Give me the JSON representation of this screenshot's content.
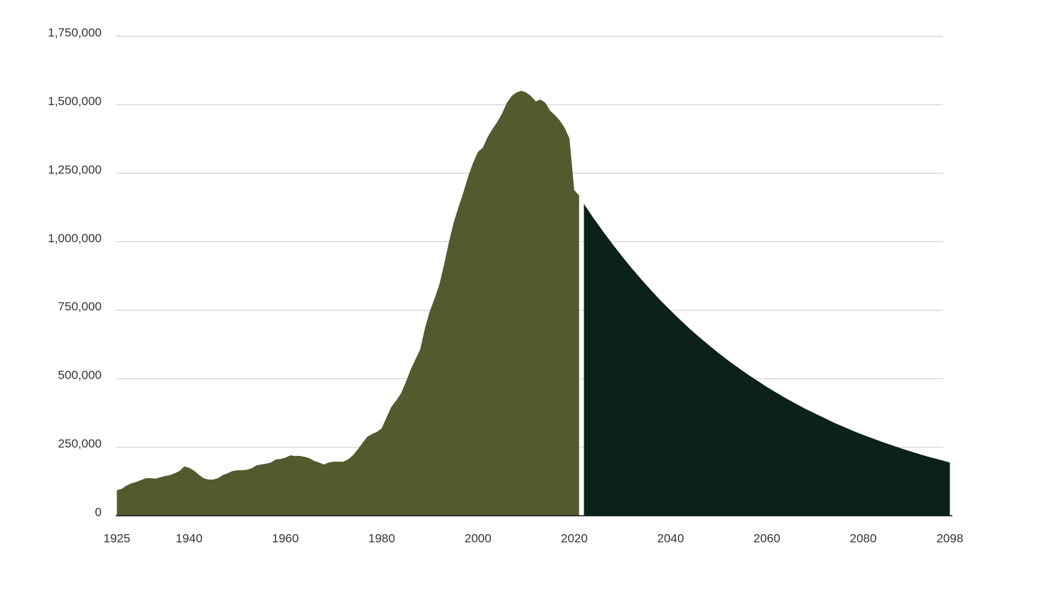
{
  "chart_data": {
    "type": "area",
    "xlim": [
      1925,
      2098
    ],
    "xticks": [
      1925,
      1940,
      1960,
      1980,
      2000,
      2020,
      2040,
      2060,
      2080,
      2098
    ],
    "ylim": [
      0,
      1750000
    ],
    "yticks": [
      0,
      {
        "value": 250000,
        "label": "250,000"
      },
      {
        "value": 500000,
        "label": "500,000"
      },
      {
        "value": 750000,
        "label": "750,000"
      },
      {
        "value": 1000000,
        "label": "1,000,000"
      },
      {
        "value": 1250000,
        "label": "1,250,000"
      },
      {
        "value": 1500000,
        "label": "1,500,000"
      },
      {
        "value": 1750000,
        "label": "1,750,000"
      }
    ],
    "grid": true,
    "series": [
      {
        "color": "#535a2e",
        "x": [
          1925,
          1926,
          1927,
          1928,
          1929,
          1930,
          1931,
          1932,
          1933,
          1934,
          1935,
          1936,
          1937,
          1938,
          1939,
          1940,
          1941,
          1942,
          1943,
          1944,
          1945,
          1946,
          1947,
          1948,
          1949,
          1950,
          1951,
          1952,
          1953,
          1954,
          1955,
          1956,
          1957,
          1958,
          1959,
          1960,
          1961,
          1962,
          1963,
          1964,
          1965,
          1966,
          1967,
          1968,
          1969,
          1970,
          1971,
          1972,
          1973,
          1974,
          1975,
          1976,
          1977,
          1978,
          1979,
          1980,
          1981,
          1982,
          1983,
          1984,
          1985,
          1986,
          1987,
          1988,
          1989,
          1990,
          1991,
          1992,
          1993,
          1994,
          1995,
          1996,
          1997,
          1998,
          1999,
          2000,
          2001,
          2002,
          2003,
          2004,
          2005,
          2006,
          2007,
          2008,
          2009,
          2010,
          2011,
          2012,
          2013,
          2014,
          2015,
          2016,
          2017,
          2018,
          2019,
          2020,
          2021
        ],
        "values": [
          93000,
          98000,
          110000,
          118000,
          123000,
          130000,
          137000,
          137000,
          135000,
          140000,
          145000,
          148000,
          155000,
          163000,
          180000,
          175000,
          165000,
          150000,
          137000,
          132000,
          132000,
          137000,
          148000,
          155000,
          163000,
          166000,
          166000,
          168000,
          173000,
          184000,
          187000,
          190000,
          194000,
          205000,
          207000,
          212000,
          220000,
          218000,
          218000,
          215000,
          210000,
          200000,
          194000,
          187000,
          194000,
          197000,
          197000,
          197000,
          205000,
          220000,
          241000,
          265000,
          288000,
          298000,
          306000,
          319000,
          358000,
          397000,
          420000,
          446000,
          487000,
          532000,
          570000,
          607000,
          685000,
          747000,
          793000,
          845000,
          920000,
          1001000,
          1073000,
          1128000,
          1182000,
          1240000,
          1289000,
          1328000,
          1343000,
          1382000,
          1411000,
          1437000,
          1468000,
          1507000,
          1532000,
          1545000,
          1551000,
          1545000,
          1532000,
          1512000,
          1519000,
          1507000,
          1478000,
          1462000,
          1442000,
          1416000,
          1377000,
          1188000,
          1169000
        ]
      },
      {
        "color": "#0c2118",
        "x": [
          2022,
          2024,
          2026,
          2028,
          2030,
          2032,
          2034,
          2036,
          2038,
          2040,
          2042,
          2044,
          2046,
          2048,
          2050,
          2052,
          2054,
          2056,
          2058,
          2060,
          2062,
          2064,
          2066,
          2068,
          2070,
          2072,
          2074,
          2076,
          2078,
          2080,
          2082,
          2084,
          2086,
          2088,
          2090,
          2092,
          2094,
          2096,
          2098
        ],
        "values": [
          1138000,
          1086000,
          1037000,
          990000,
          945000,
          902000,
          861000,
          822000,
          784000,
          749000,
          715000,
          682000,
          651000,
          622000,
          593000,
          566000,
          541000,
          516000,
          493000,
          470000,
          449000,
          428000,
          409000,
          390000,
          373000,
          356000,
          339000,
          324000,
          309000,
          295000,
          282000,
          269000,
          257000,
          245000,
          234000,
          223000,
          213000,
          204000,
          194000
        ]
      }
    ]
  }
}
